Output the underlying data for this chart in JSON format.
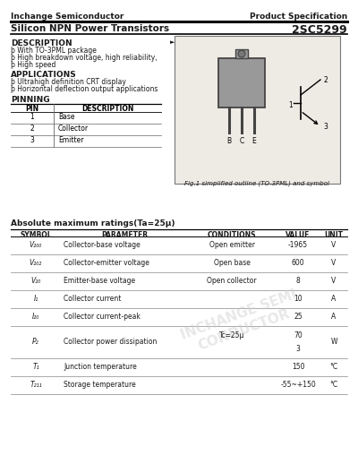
{
  "bg_color": "#ffffff",
  "company": "Inchange Semiconductor",
  "spec_label": "Product Specification",
  "product_type": "Silicon NPN Power Transistors",
  "part_number": "2SC5299",
  "description_title": "DESCRIPTION",
  "description_lines": [
    "þ With TO-3PML package",
    "þ High breakdown voltage, high reliability,",
    "þ High speed"
  ],
  "applications_title": "APPLICATIONS",
  "applications_lines": [
    "þ Ultrahigh definition CRT display",
    "þ Horizontal deflection output applications"
  ],
  "pinning_title": "PINNING",
  "pin_headers": [
    "PIN",
    "DESCRIPTION"
  ],
  "pin_rows": [
    [
      "1",
      "Base"
    ],
    [
      "2",
      "Collector"
    ],
    [
      "3",
      "Emitter"
    ]
  ],
  "fig_caption": "Fig.1 simplified outline (TO-3PML) and symbol",
  "abs_max_title": "Absolute maximum ratings(Ta=25µ)",
  "table_headers": [
    "SYMBOL",
    "PARAMETER",
    "CONDITIONS",
    "VALUE",
    "UNIT"
  ],
  "table_rows": [
    [
      "V₂₀₀",
      "Collector-base voltage",
      "Open emitter",
      "-1965",
      "V"
    ],
    [
      "V₂₀₂",
      "Collector-emitter voltage",
      "Open base",
      "600",
      "V"
    ],
    [
      "V₂₀",
      "Emitter-base voltage",
      "Open collector",
      "8",
      "V"
    ],
    [
      "I₁",
      "Collector current",
      "",
      "10",
      "A"
    ],
    [
      "I₂₀",
      "Collector current-peak",
      "",
      "25",
      "A"
    ],
    [
      "P₂",
      "Collector power dissipation",
      "Tc=25µ",
      "70\n3",
      "W"
    ],
    [
      "T₁",
      "Junction temperature",
      "",
      "150",
      "°C"
    ],
    [
      "T₂₁₁",
      "Storage temperature",
      "",
      "-55~+150",
      "°C"
    ]
  ],
  "watermark_line1": "INCHANGE SEMI",
  "watermark_line2": "CONDUCTOR",
  "text_color": "#1a1a1a"
}
